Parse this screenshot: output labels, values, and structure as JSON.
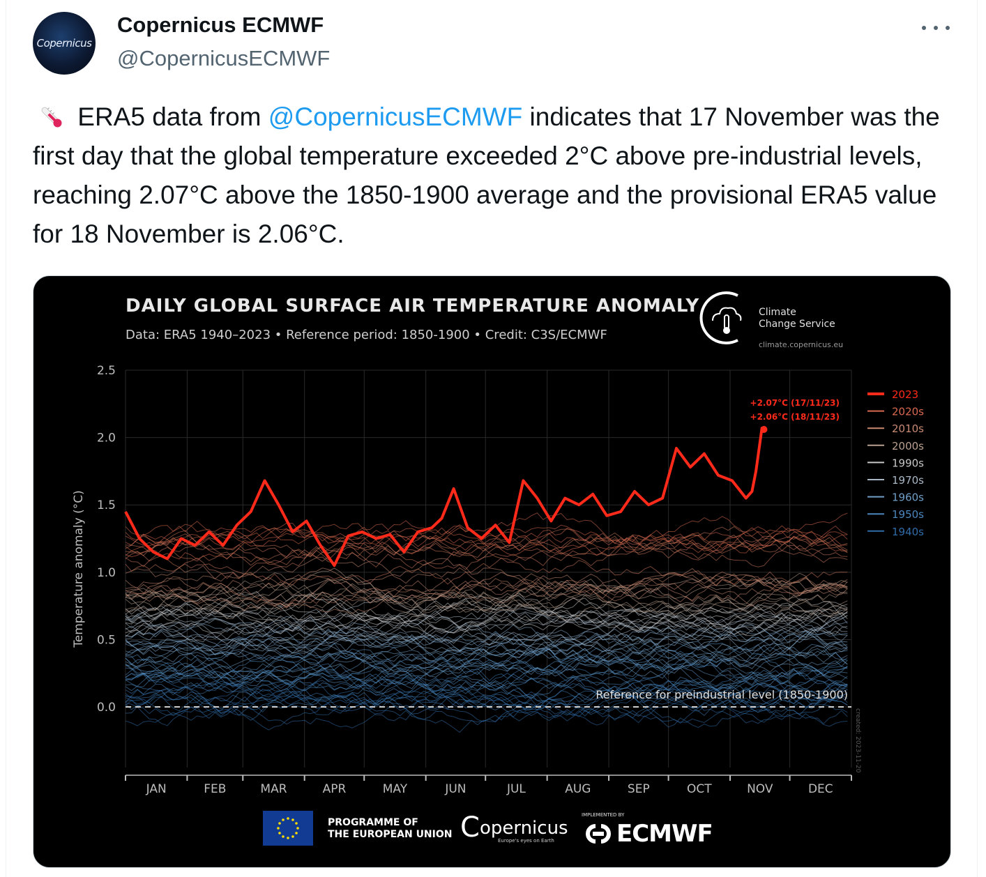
{
  "author": {
    "name": "Copernicus ECMWF",
    "handle": "@CopernicusECMWF",
    "avatar_text": "Copernicus"
  },
  "tweet": {
    "text_before": " ERA5 data from ",
    "mention": "@CopernicusECMWF",
    "text_after": " indicates that 17 November was the first day that the global temperature exceeded 2°C above pre-industrial levels, reaching 2.07°C above the 1850-1900 average and the provisional ERA5 value for 18 November is 2.06°C."
  },
  "icons": {
    "more": "more-options-icon",
    "thermometer": "thermometer-icon"
  },
  "media": {
    "title": "DAILY GLOBAL SURFACE AIR TEMPERATURE ANOMALY",
    "subtitle": "Data: ERA5 1940–2023 • Reference period: 1850-1900 • Credit: C3S/ECMWF",
    "c3s_line1": "Climate",
    "c3s_line2": "Change Service",
    "c3s_url": "climate.copernicus.eu",
    "footer_programme_1": "PROGRAMME OF",
    "footer_programme_2": "THE EUROPEAN UNION",
    "footer_copernicus": "opernicus",
    "footer_copernicus_sub": "Europe's eyes on Earth",
    "footer_implemented": "IMPLEMENTED BY",
    "footer_ecmwf": "ECMWF",
    "created_stamp": "created: 2023-11-20"
  },
  "chart_data": {
    "type": "line",
    "title": "DAILY GLOBAL SURFACE AIR TEMPERATURE ANOMALY",
    "ylabel": "Temperature anomaly (°C)",
    "ylim": [
      -0.45,
      2.5
    ],
    "yticks": [
      "2.5",
      "2.0",
      "1.5",
      "1.0",
      "0.5",
      "0.0"
    ],
    "ytick_values": [
      2.5,
      2.0,
      1.5,
      1.0,
      0.5,
      0.0
    ],
    "months": [
      "JAN",
      "FEB",
      "MAR",
      "APR",
      "MAY",
      "JUN",
      "JUL",
      "AUG",
      "SEP",
      "OCT",
      "NOV",
      "DEC"
    ],
    "grid": true,
    "legend_position": "right",
    "legend": [
      {
        "name": "2023",
        "color": "#ff2a1a"
      },
      {
        "name": "2020s",
        "color": "#d9694f"
      },
      {
        "name": "2010s",
        "color": "#c98a73"
      },
      {
        "name": "2000s",
        "color": "#b9a090"
      },
      {
        "name": "1990s",
        "color": "#c8c8c8"
      },
      {
        "name": "1970s",
        "color": "#aab8c6"
      },
      {
        "name": "1960s",
        "color": "#6f9fc9"
      },
      {
        "name": "1950s",
        "color": "#4b86bd"
      },
      {
        "name": "1940s",
        "color": "#2f6ca8"
      }
    ],
    "reference_label": "Reference for preindustrial level (1850-1900)",
    "annotations": [
      "+2.07°C (17/11/23)",
      "+2.06°C (18/11/23)"
    ],
    "series_2023": {
      "name": "2023",
      "x_day_of_year": [
        1,
        8,
        15,
        22,
        29,
        36,
        43,
        50,
        57,
        64,
        71,
        78,
        85,
        92,
        99,
        106,
        113,
        120,
        127,
        134,
        141,
        148,
        155,
        160,
        166,
        173,
        180,
        187,
        194,
        201,
        208,
        215,
        222,
        229,
        236,
        243,
        250,
        257,
        264,
        271,
        278,
        285,
        292,
        299,
        306,
        313,
        316,
        318,
        321,
        322
      ],
      "y": [
        1.45,
        1.25,
        1.15,
        1.1,
        1.25,
        1.2,
        1.3,
        1.2,
        1.35,
        1.45,
        1.68,
        1.5,
        1.3,
        1.38,
        1.2,
        1.05,
        1.27,
        1.3,
        1.25,
        1.28,
        1.15,
        1.3,
        1.33,
        1.4,
        1.62,
        1.33,
        1.25,
        1.35,
        1.22,
        1.68,
        1.55,
        1.38,
        1.55,
        1.5,
        1.58,
        1.42,
        1.45,
        1.6,
        1.5,
        1.55,
        1.92,
        1.78,
        1.88,
        1.72,
        1.68,
        1.55,
        1.6,
        1.75,
        2.07,
        2.06
      ]
    }
  }
}
